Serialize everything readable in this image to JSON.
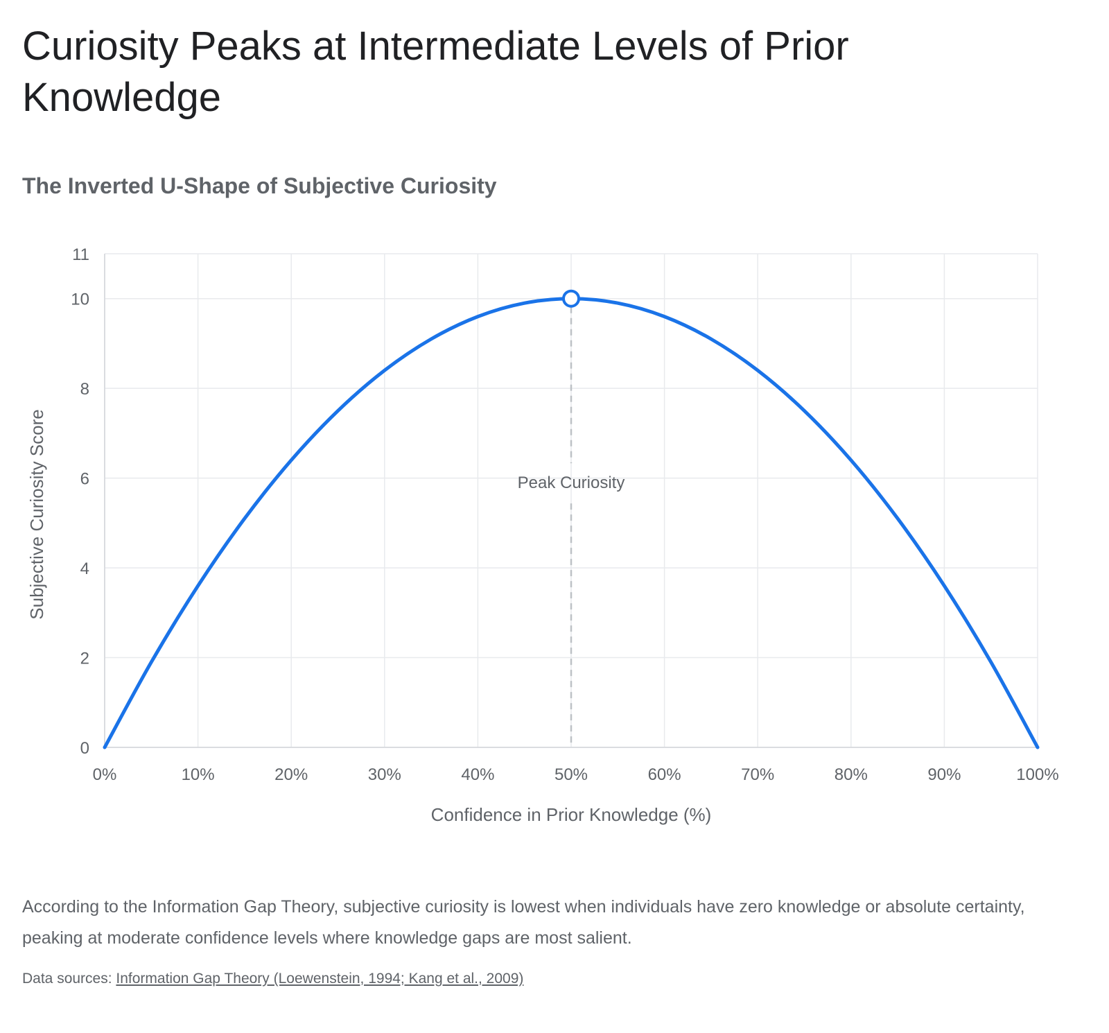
{
  "title": "Curiosity Peaks at Intermediate Levels of Prior Knowledge",
  "subtitle": "The Inverted U-Shape of Subjective Curiosity",
  "description": "According to the Information Gap Theory, subjective curiosity is lowest when individuals have zero knowledge or absolute certainty, peaking at moderate confidence levels where knowledge gaps are most salient.",
  "sources": {
    "label": "Data sources: ",
    "link_text": "Information Gap Theory (Loewenstein, 1994; Kang et al., 2009)"
  },
  "colors": {
    "line": "#1a73e8",
    "grid": "#e8eaed",
    "axis_text": "#5f6368",
    "annotation_line": "#bdc1c6"
  },
  "chart_data": {
    "type": "line",
    "xlabel": "Confidence in Prior Knowledge (%)",
    "ylabel": "Subjective Curiosity Score",
    "xlim": [
      0,
      100
    ],
    "ylim": [
      0,
      11
    ],
    "x_ticks": [
      0,
      10,
      20,
      30,
      40,
      50,
      60,
      70,
      80,
      90,
      100
    ],
    "x_tick_labels": [
      "0%",
      "10%",
      "20%",
      "30%",
      "40%",
      "50%",
      "60%",
      "70%",
      "80%",
      "90%",
      "100%"
    ],
    "y_ticks": [
      0,
      2,
      4,
      6,
      8,
      10,
      11
    ],
    "y_tick_labels": [
      "0",
      "2",
      "4",
      "6",
      "8",
      "10",
      "11"
    ],
    "grid": true,
    "legend": "none",
    "series": [
      {
        "x": [
          0,
          5,
          10,
          15,
          20,
          25,
          30,
          35,
          40,
          45,
          50,
          55,
          60,
          65,
          70,
          75,
          80,
          85,
          90,
          95,
          100
        ],
        "values": [
          0,
          1.9,
          3.6,
          5.1,
          6.4,
          7.5,
          8.4,
          9.1,
          9.6,
          9.9,
          10,
          9.9,
          9.6,
          9.1,
          8.4,
          7.5,
          6.4,
          5.1,
          3.6,
          1.9,
          0
        ]
      }
    ],
    "annotations": [
      {
        "x": 50,
        "y": 10,
        "label": "Peak Curiosity",
        "style": "dashed-vertical",
        "marker": "open-circle"
      }
    ]
  }
}
